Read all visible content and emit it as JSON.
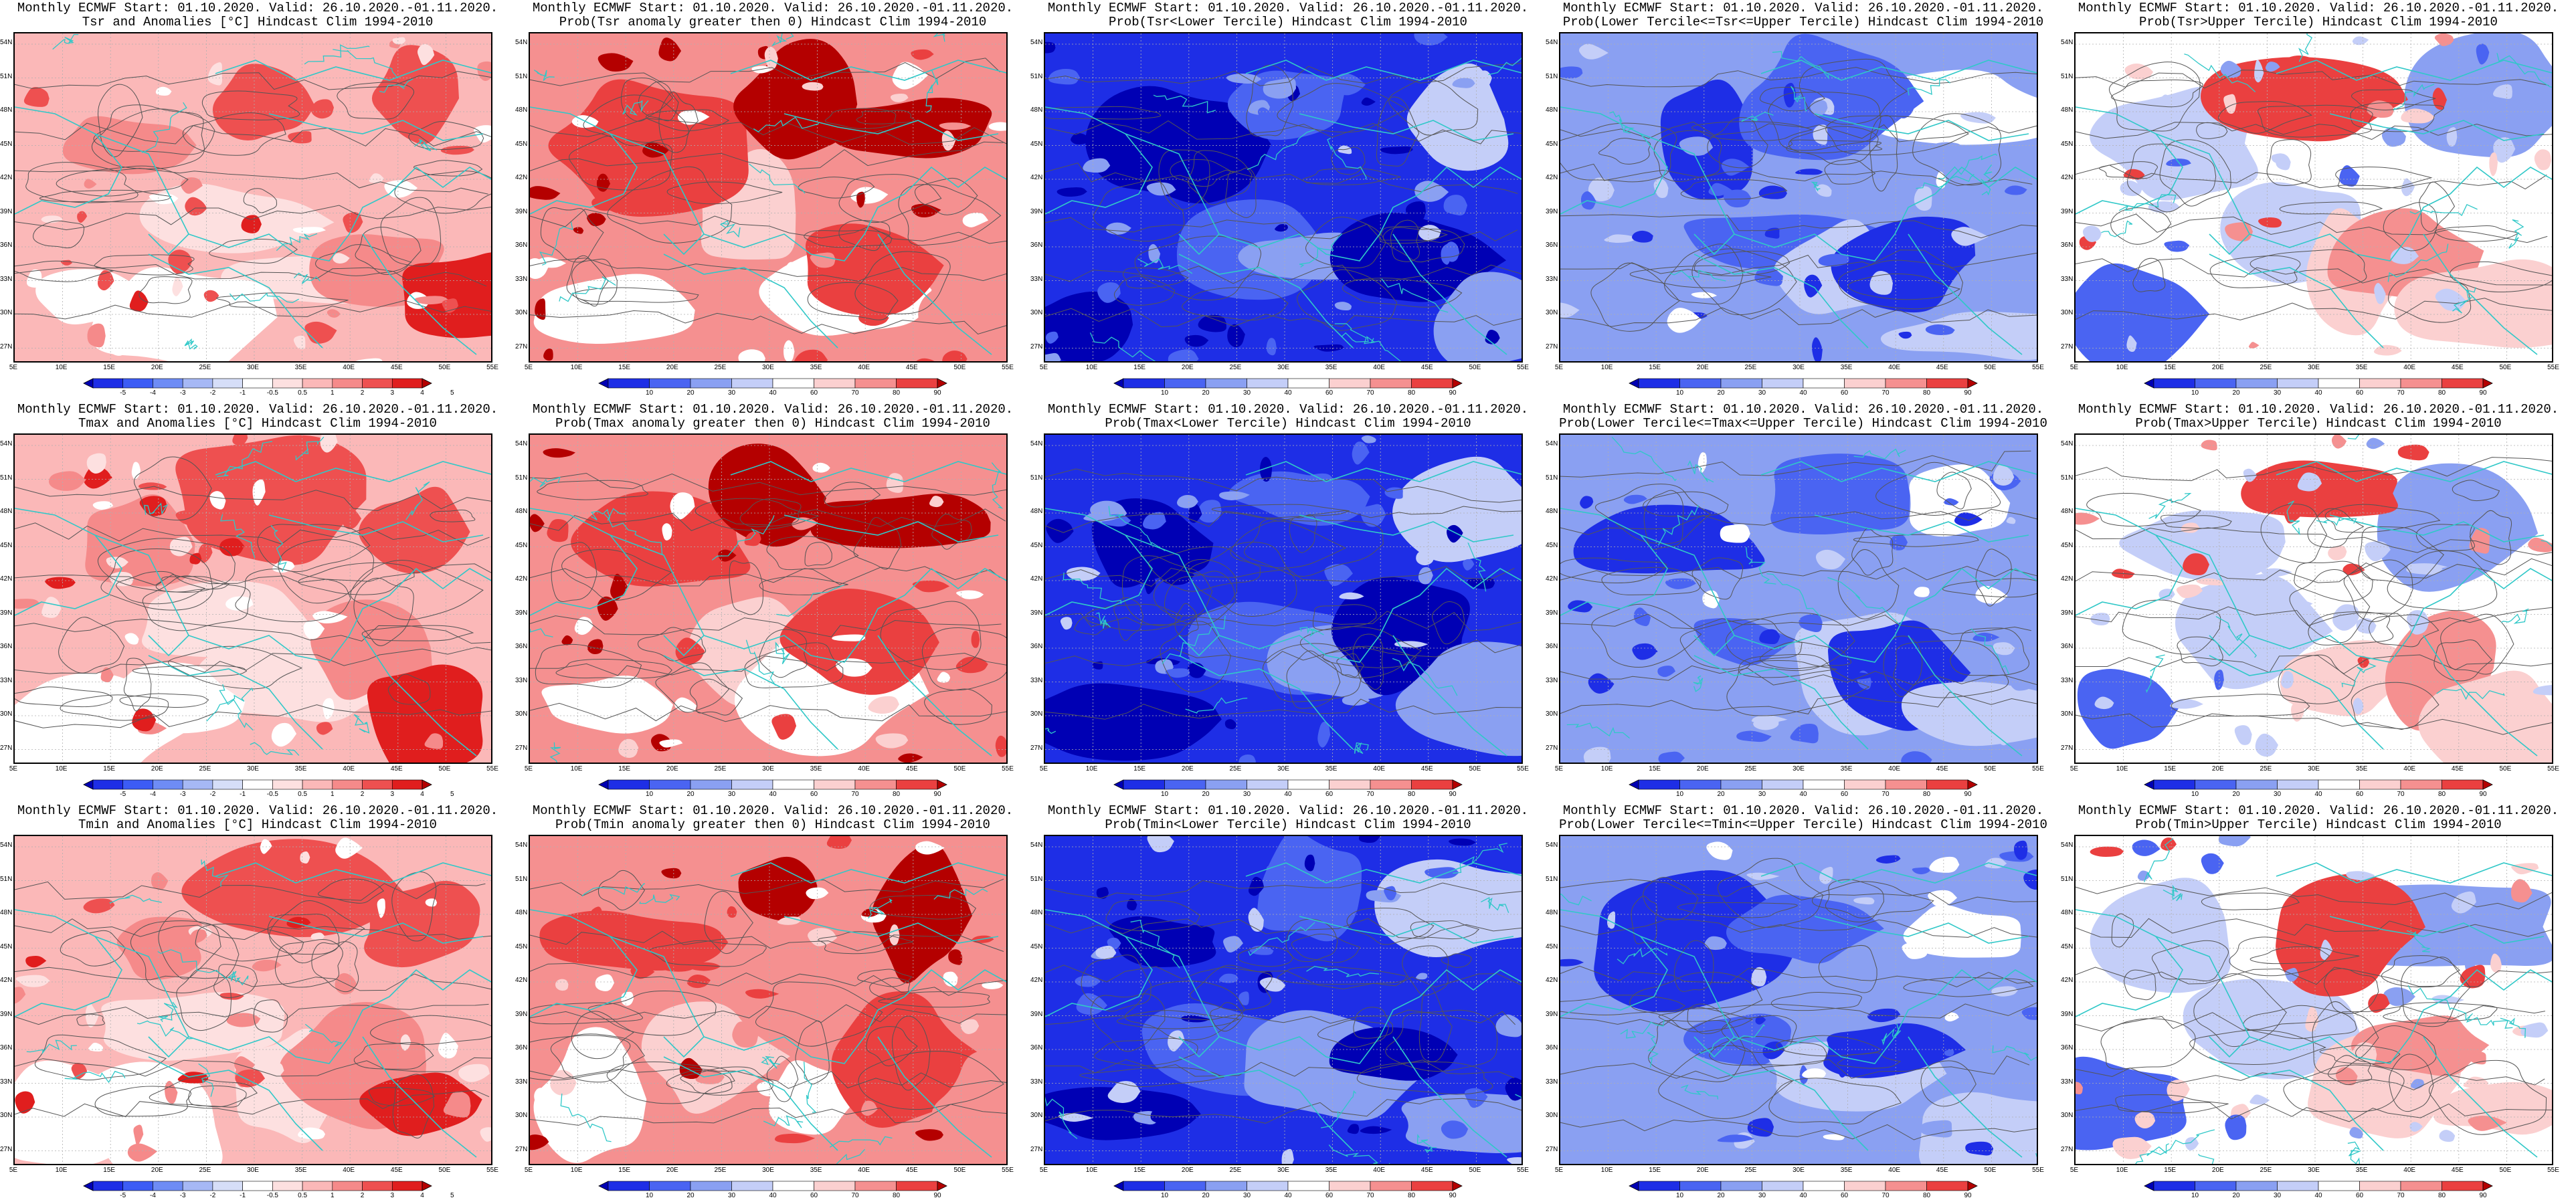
{
  "lat_ticks": [
    "54N",
    "51N",
    "48N",
    "45N",
    "42N",
    "39N",
    "36N",
    "33N",
    "30N",
    "27N"
  ],
  "lon_ticks": [
    "5E",
    "10E",
    "15E",
    "20E",
    "25E",
    "30E",
    "35E",
    "40E",
    "45E",
    "50E",
    "55E"
  ],
  "anomaly_ticks": [
    "-5",
    "-4",
    "-3",
    "-2",
    "-1",
    "-0.5",
    "0.5",
    "1",
    "2",
    "3",
    "4",
    "5"
  ],
  "prob_ticks": [
    "10",
    "20",
    "30",
    "40",
    "60",
    "70",
    "80",
    "90"
  ],
  "colors": {
    "anomaly_scale": [
      "#0000b4",
      "#1e2ee6",
      "#3c5cf5",
      "#6e8cf5",
      "#a6b8f5",
      "#d6def8",
      "#ffffff",
      "#fde0e0",
      "#fbb8b8",
      "#f58a8a",
      "#ee5050",
      "#e01e1e",
      "#b40000"
    ],
    "prob_scale": [
      "#0000b4",
      "#1e2ee6",
      "#4a64f2",
      "#8aa0f2",
      "#c4cef8",
      "#ffffff",
      "#fbd0d0",
      "#f59090",
      "#ea4040",
      "#b40000"
    ],
    "land_contour": "#30c8c8",
    "topo_contour": "#555555"
  },
  "panels": [
    {
      "row": 0,
      "col": 0,
      "kind": "anomaly",
      "title1": "Monthly ECMWF Start: 01.10.2020. Valid: 26.10.2020.-01.11.2020.",
      "title2": "Tsr and Anomalies [°C] Hindcast Clim 1994-2010"
    },
    {
      "row": 0,
      "col": 1,
      "kind": "prob_warm",
      "title1": "Monthly ECMWF Start: 01.10.2020. Valid: 26.10.2020.-01.11.2020.",
      "title2": "Prob(Tsr anomaly greater then 0) Hindcast Clim 1994-2010"
    },
    {
      "row": 0,
      "col": 2,
      "kind": "prob_lower",
      "title1": "Monthly ECMWF Start: 01.10.2020. Valid: 26.10.2020.-01.11.2020.",
      "title2": "Prob(Tsr<Lower Tercile) Hindcast Clim 1994-2010"
    },
    {
      "row": 0,
      "col": 3,
      "kind": "prob_middle",
      "title1": "Monthly ECMWF Start: 01.10.2020. Valid: 26.10.2020.-01.11.2020.",
      "title2": "Prob(Lower Tercile<=Tsr<=Upper Tercile) Hindcast Clim 1994-2010"
    },
    {
      "row": 0,
      "col": 4,
      "kind": "prob_upper",
      "title1": "Monthly ECMWF Start: 01.10.2020. Valid: 26.10.2020.-01.11.2020.",
      "title2": "Prob(Tsr>Upper Tercile) Hindcast Clim 1994-2010"
    },
    {
      "row": 1,
      "col": 0,
      "kind": "anomaly",
      "title1": "Monthly ECMWF Start: 01.10.2020. Valid: 26.10.2020.-01.11.2020.",
      "title2": "Tmax and Anomalies [°C] Hindcast Clim 1994-2010"
    },
    {
      "row": 1,
      "col": 1,
      "kind": "prob_warm",
      "title1": "Monthly ECMWF Start: 01.10.2020. Valid: 26.10.2020.-01.11.2020.",
      "title2": "Prob(Tmax anomaly greater then 0) Hindcast Clim 1994-2010"
    },
    {
      "row": 1,
      "col": 2,
      "kind": "prob_lower",
      "title1": "Monthly ECMWF Start: 01.10.2020. Valid: 26.10.2020.-01.11.2020.",
      "title2": "Prob(Tmax<Lower Tercile) Hindcast Clim 1994-2010"
    },
    {
      "row": 1,
      "col": 3,
      "kind": "prob_middle",
      "title1": "Monthly ECMWF Start: 01.10.2020. Valid: 26.10.2020.-01.11.2020.",
      "title2": "Prob(Lower Tercile<=Tmax<=Upper Tercile) Hindcast Clim 1994-2010"
    },
    {
      "row": 1,
      "col": 4,
      "kind": "prob_upper",
      "title1": "Monthly ECMWF Start: 01.10.2020. Valid: 26.10.2020.-01.11.2020.",
      "title2": "Prob(Tmax>Upper Tercile) Hindcast Clim 1994-2010"
    },
    {
      "row": 2,
      "col": 0,
      "kind": "anomaly",
      "title1": "Monthly ECMWF Start: 01.10.2020. Valid: 26.10.2020.-01.11.2020.",
      "title2": "Tmin and Anomalies [°C] Hindcast Clim 1994-2010"
    },
    {
      "row": 2,
      "col": 1,
      "kind": "prob_warm",
      "title1": "Monthly ECMWF Start: 01.10.2020. Valid: 26.10.2020.-01.11.2020.",
      "title2": "Prob(Tmin anomaly greater then 0) Hindcast Clim 1994-2010"
    },
    {
      "row": 2,
      "col": 2,
      "kind": "prob_lower",
      "title1": "Monthly ECMWF Start: 01.10.2020. Valid: 26.10.2020.-01.11.2020.",
      "title2": "Prob(Tmin<Lower Tercile) Hindcast Clim 1994-2010"
    },
    {
      "row": 2,
      "col": 3,
      "kind": "prob_middle",
      "title1": "Monthly ECMWF Start: 01.10.2020. Valid: 26.10.2020.-01.11.2020.",
      "title2": "Prob(Lower Tercile<=Tmin<=Upper Tercile) Hindcast Clim 1994-2010"
    },
    {
      "row": 2,
      "col": 4,
      "kind": "prob_upper",
      "title1": "Monthly ECMWF Start: 01.10.2020. Valid: 26.10.2020.-01.11.2020.",
      "title2": "Prob(Tmin>Upper Tercile) Hindcast Clim 1994-2010"
    }
  ]
}
